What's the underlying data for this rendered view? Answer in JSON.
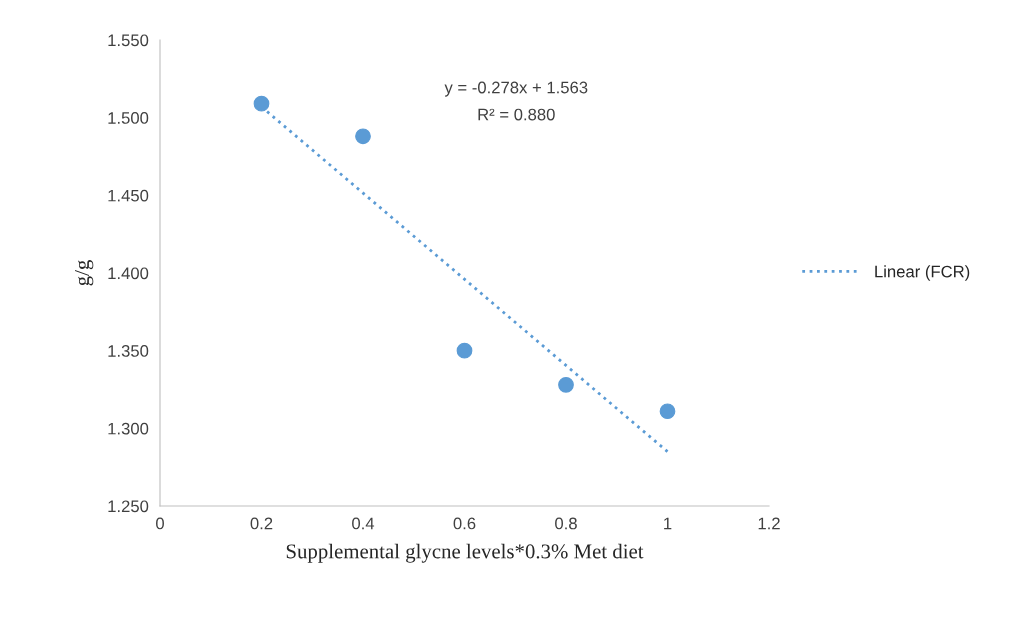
{
  "chart_data": {
    "type": "scatter",
    "xlabel": "Supplemental glycne levels*0.3% Met diet",
    "ylabel": "g/g",
    "xlim": [
      0,
      1.2
    ],
    "xticks": [
      0,
      0.2,
      0.4,
      0.6,
      0.8,
      1,
      1.2
    ],
    "ylim": [
      1.25,
      1.55
    ],
    "yticks": [
      {
        "value": 1.25,
        "label": "1.250"
      },
      {
        "value": 1.3,
        "label": "1.300"
      },
      {
        "value": 1.35,
        "label": "1.350"
      },
      {
        "value": 1.4,
        "label": "1.400"
      },
      {
        "value": 1.45,
        "label": "1.450"
      },
      {
        "value": 1.5,
        "label": "1.500"
      },
      {
        "value": 1.55,
        "label": "1.550"
      }
    ],
    "x": [
      0.2,
      0.4,
      0.6,
      0.8,
      1
    ],
    "series": [
      {
        "color": "#5b9bd5",
        "marker": "circle",
        "values": [
          1.509,
          1.488,
          1.35,
          1.328,
          1.311
        ]
      },
      {
        "type": "line",
        "name": "Linear (FCR)",
        "color": "#5b9bd5",
        "line_style": "dotted",
        "marker": "none",
        "x": [
          0.2,
          1
        ],
        "values": [
          1.507,
          1.285
        ]
      }
    ],
    "annotations": [
      "y = -0.278x + 1.563",
      "R² = 0.880"
    ],
    "grid": false,
    "legend": "right"
  }
}
